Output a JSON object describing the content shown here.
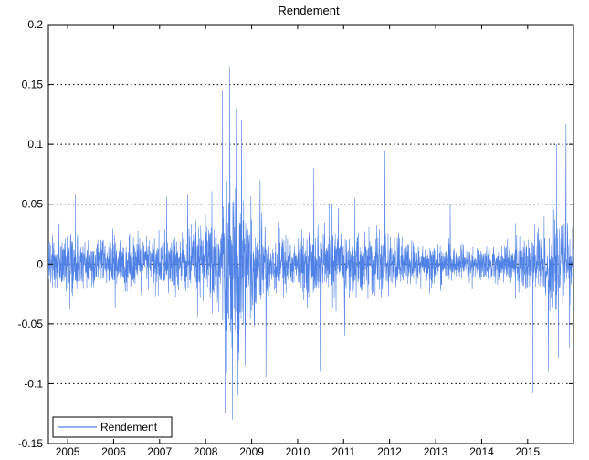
{
  "chart_data": {
    "type": "line",
    "title": "Rendement",
    "xlabel": "",
    "ylabel": "",
    "x_range": [
      "2004-08-01",
      "2015-12-31"
    ],
    "xlim": [
      "2004-08-01",
      "2015-12-31"
    ],
    "ylim": [
      -0.15,
      0.2
    ],
    "y_ticks": [
      -0.15,
      -0.1,
      -0.05,
      0,
      0.05,
      0.1,
      0.15,
      0.2
    ],
    "y_tick_labels": [
      "-0.15",
      "-0.1",
      "-0.05",
      "0",
      "0.05",
      "0.1",
      "0.15",
      "0.2"
    ],
    "x_ticks": [
      "2005-01-01",
      "2006-01-01",
      "2007-01-01",
      "2008-01-01",
      "2009-01-01",
      "2010-01-01",
      "2011-01-01",
      "2012-01-01",
      "2013-01-01",
      "2014-01-01",
      "2015-01-01"
    ],
    "x_tick_labels": [
      "2005",
      "2006",
      "2007",
      "2008",
      "2009",
      "2010",
      "2011",
      "2012",
      "2013",
      "2014",
      "2015"
    ],
    "grid": "y-dotted",
    "legend_position": "bottom-left",
    "series": [
      {
        "name": "Rendement",
        "color": "#4f81e6",
        "volatility_profile": [
          {
            "x": "2004-08-01",
            "amplitude": 0.025
          },
          {
            "x": "2005-06-01",
            "amplitude": 0.022
          },
          {
            "x": "2006-06-01",
            "amplitude": 0.022
          },
          {
            "x": "2007-07-01",
            "amplitude": 0.028
          },
          {
            "x": "2008-01-01",
            "amplitude": 0.035
          },
          {
            "x": "2008-06-01",
            "amplitude": 0.06
          },
          {
            "x": "2008-10-01",
            "amplitude": 0.07
          },
          {
            "x": "2009-03-01",
            "amplitude": 0.035
          },
          {
            "x": "2010-01-01",
            "amplitude": 0.022
          },
          {
            "x": "2010-05-01",
            "amplitude": 0.03
          },
          {
            "x": "2011-08-01",
            "amplitude": 0.028
          },
          {
            "x": "2012-06-01",
            "amplitude": 0.02
          },
          {
            "x": "2013-06-01",
            "amplitude": 0.015
          },
          {
            "x": "2014-06-01",
            "amplitude": 0.015
          },
          {
            "x": "2015-01-01",
            "amplitude": 0.03
          },
          {
            "x": "2015-08-01",
            "amplitude": 0.04
          },
          {
            "x": "2015-12-31",
            "amplitude": 0.035
          }
        ],
        "notable_points": [
          {
            "x": "2005-03-10",
            "y": 0.058
          },
          {
            "x": "2005-09-15",
            "y": 0.068
          },
          {
            "x": "2007-02-27",
            "y": 0.056
          },
          {
            "x": "2007-08-16",
            "y": 0.058
          },
          {
            "x": "2008-05-20",
            "y": 0.145
          },
          {
            "x": "2008-06-10",
            "y": -0.125
          },
          {
            "x": "2008-07-15",
            "y": 0.165
          },
          {
            "x": "2008-08-01",
            "y": -0.13
          },
          {
            "x": "2008-09-01",
            "y": 0.13
          },
          {
            "x": "2008-09-15",
            "y": -0.11
          },
          {
            "x": "2008-10-13",
            "y": 0.12
          },
          {
            "x": "2009-03-10",
            "y": 0.07
          },
          {
            "x": "2010-05-10",
            "y": 0.08
          },
          {
            "x": "2010-07-01",
            "y": -0.09
          },
          {
            "x": "2010-10-01",
            "y": 0.05
          },
          {
            "x": "2011-01-15",
            "y": -0.06
          },
          {
            "x": "2011-11-30",
            "y": 0.095
          },
          {
            "x": "2015-02-15",
            "y": -0.108
          },
          {
            "x": "2015-06-15",
            "y": -0.09
          },
          {
            "x": "2015-08-24",
            "y": 0.1
          },
          {
            "x": "2015-11-01",
            "y": 0.117
          },
          {
            "x": "2015-12-01",
            "y": -0.07
          }
        ]
      }
    ]
  }
}
